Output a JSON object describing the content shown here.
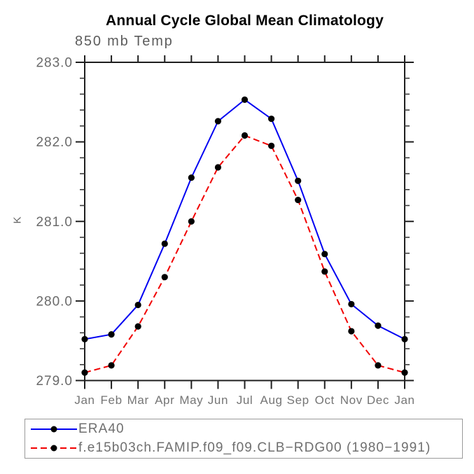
{
  "chart_data": {
    "type": "line",
    "title": "Annual Cycle Global Mean Climatology",
    "subtitle": "850 mb Temp",
    "xlabel": "",
    "ylabel": "K",
    "ylim": [
      279.0,
      283.0
    ],
    "ytick_labels": [
      "279.0",
      "280.0",
      "281.0",
      "282.0",
      "283.0"
    ],
    "yticks": [
      279.0,
      280.0,
      281.0,
      282.0,
      283.0
    ],
    "minor_tick_step": 0.2,
    "grid": "off",
    "frame": "box-with-outward-ticks",
    "categories": [
      "Jan",
      "Feb",
      "Mar",
      "Apr",
      "May",
      "Jun",
      "Jul",
      "Aug",
      "Sep",
      "Oct",
      "Nov",
      "Dec",
      "Jan"
    ],
    "series": [
      {
        "name": "ERA40",
        "color": "#0000f2",
        "line_style": "solid",
        "marker": "filled-circle",
        "marker_color": "#000000",
        "values": [
          279.52,
          279.58,
          279.95,
          280.72,
          281.55,
          282.26,
          282.53,
          282.29,
          281.51,
          280.59,
          279.96,
          279.69,
          279.52
        ]
      },
      {
        "name": "f.e15b03ch.FAMIP.f09_f09.CLB−RDG00 (1980−1991)",
        "color": "#f10000",
        "line_style": "dashed",
        "marker": "filled-circle",
        "marker_color": "#000000",
        "values": [
          279.1,
          279.19,
          279.68,
          280.3,
          281.0,
          281.68,
          282.08,
          281.95,
          281.27,
          280.37,
          279.62,
          279.19,
          279.1
        ]
      }
    ],
    "legend_position": "bottom-left-box"
  }
}
